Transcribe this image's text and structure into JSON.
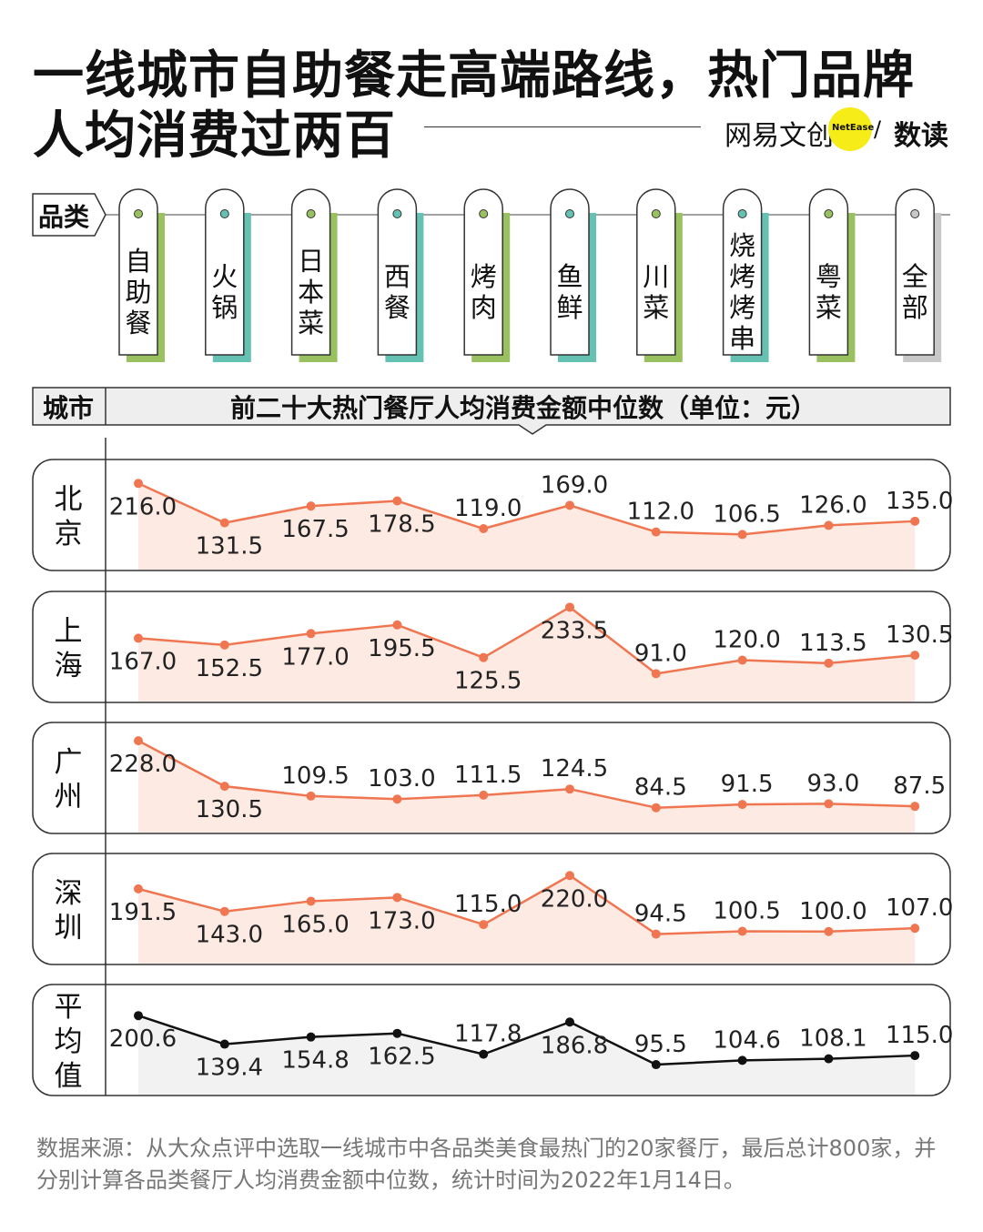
{
  "title": {
    "line1": "一线城市自助餐走高端路线，热门品牌",
    "line2": "人均消费过两百"
  },
  "brand": {
    "name": "网易文创",
    "badge": "NetEase",
    "slash": "/",
    "sub": "数读"
  },
  "labels": {
    "category_header": "品类",
    "city_header": "城市",
    "metric_title": "前二十大热门餐厅人均消费金额中位数（单位：元）"
  },
  "colors": {
    "line": "#f07651",
    "area": "#fdeae3",
    "avg_line": "#111111",
    "avg_area": "#f2f2f2",
    "tag_green": "#99c15f",
    "tag_teal": "#65c2b2",
    "tag_gray": "#c8c8c8"
  },
  "chart_data": {
    "type": "line",
    "categories": [
      "自助餐",
      "火锅",
      "日本菜",
      "西餐",
      "烤肉",
      "鱼鲜",
      "川菜",
      "烧烤烤串",
      "粤菜",
      "全部"
    ],
    "category_colors": [
      "tag_green",
      "tag_teal",
      "tag_green",
      "tag_teal",
      "tag_green",
      "tag_teal",
      "tag_green",
      "tag_teal",
      "tag_green",
      "tag_gray"
    ],
    "series": [
      {
        "name": "北京",
        "values": [
          216.0,
          131.5,
          167.5,
          178.5,
          119.0,
          169.0,
          112.0,
          106.5,
          126.0,
          135.0
        ]
      },
      {
        "name": "上海",
        "values": [
          167.0,
          152.5,
          177.0,
          195.5,
          125.5,
          233.5,
          91.0,
          120.0,
          113.5,
          130.5
        ]
      },
      {
        "name": "广州",
        "values": [
          228.0,
          130.5,
          109.5,
          103.0,
          111.5,
          124.5,
          84.5,
          91.5,
          93.0,
          87.5
        ]
      },
      {
        "name": "深圳",
        "values": [
          191.5,
          143.0,
          165.0,
          173.0,
          115.0,
          220.0,
          94.5,
          100.5,
          100.0,
          107.0
        ]
      },
      {
        "name": "平均值",
        "values": [
          200.6,
          139.4,
          154.8,
          162.5,
          117.8,
          186.8,
          95.5,
          104.6,
          108.1,
          115.0
        ]
      }
    ],
    "label_positions": [
      [
        "below",
        "below",
        "below",
        "below",
        "above",
        "above",
        "above",
        "above",
        "above",
        "above"
      ],
      [
        "below",
        "below",
        "below",
        "below",
        "below",
        "below",
        "above",
        "above",
        "above",
        "above"
      ],
      [
        "below",
        "below",
        "above",
        "above",
        "above",
        "above",
        "above",
        "above",
        "above",
        "above"
      ],
      [
        "below",
        "below",
        "below",
        "below",
        "above",
        "below",
        "above",
        "above",
        "above",
        "above"
      ],
      [
        "below",
        "below",
        "below",
        "below",
        "above",
        "below",
        "above",
        "above",
        "above",
        "above"
      ]
    ],
    "value_decimals": 1
  },
  "footer": {
    "source": "数据来源：从大众点评中选取一线城市中各品类美食最热门的20家餐厅，最后总计800家，并分别计算各品类餐厅人均消费金额中位数，统计时间为2022年1月14日。"
  }
}
